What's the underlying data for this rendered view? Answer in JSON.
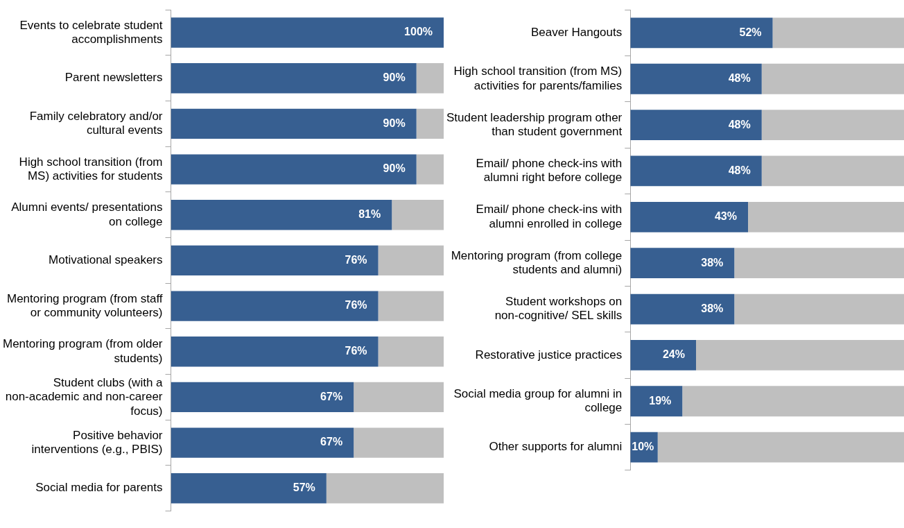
{
  "chart_data": [
    {
      "type": "bar",
      "orientation": "horizontal",
      "stacked": true,
      "xlim": [
        0,
        100
      ],
      "tick_labels": "y",
      "categories": [
        "Events to celebrate student accomplishments",
        "Parent newsletters",
        "Family celebratory and/or cultural events",
        "High school transition (from MS) activities for students",
        "Alumni events/ presentations on college",
        "Motivational speakers",
        "Mentoring program (from staff or community volunteers)",
        "Mentoring program (from older students)",
        "Student clubs (with a non-academic and non-career focus)",
        "Positive behavior interventions (e.g., PBIS)",
        "Social media for parents"
      ],
      "series": [
        {
          "color": "#375f91",
          "values": [
            100,
            90,
            90,
            90,
            81,
            76,
            76,
            76,
            67,
            67,
            57
          ],
          "value_labels": [
            "100%",
            "90%",
            "90%",
            "90%",
            "81%",
            "76%",
            "76%",
            "76%",
            "67%",
            "67%",
            "57%"
          ]
        },
        {
          "color": "#bfbfbf",
          "values": [
            0,
            10,
            10,
            10,
            19,
            24,
            24,
            24,
            33,
            33,
            43
          ]
        }
      ]
    },
    {
      "type": "bar",
      "orientation": "horizontal",
      "stacked": true,
      "xlim": [
        0,
        100
      ],
      "tick_labels": "y",
      "categories": [
        "Beaver Hangouts",
        "High school transition (from MS) activities for parents/families",
        "Student leadership program other than student government",
        "Email/ phone check-ins with alumni right before college",
        "Email/ phone check-ins with alumni enrolled in college",
        "Mentoring program (from college students and alumni)",
        "Student workshops on non-cognitive/ SEL skills",
        "Restorative justice practices",
        "Social media group for alumni in college",
        "Other supports for alumni"
      ],
      "series": [
        {
          "color": "#375f91",
          "values": [
            52,
            48,
            48,
            48,
            43,
            38,
            38,
            24,
            19,
            10
          ],
          "value_labels": [
            "52%",
            "48%",
            "48%",
            "48%",
            "43%",
            "38%",
            "38%",
            "24%",
            "19%",
            "10%"
          ]
        },
        {
          "color": "#bfbfbf",
          "values": [
            48,
            52,
            52,
            52,
            57,
            62,
            62,
            76,
            81,
            90
          ]
        }
      ]
    }
  ]
}
